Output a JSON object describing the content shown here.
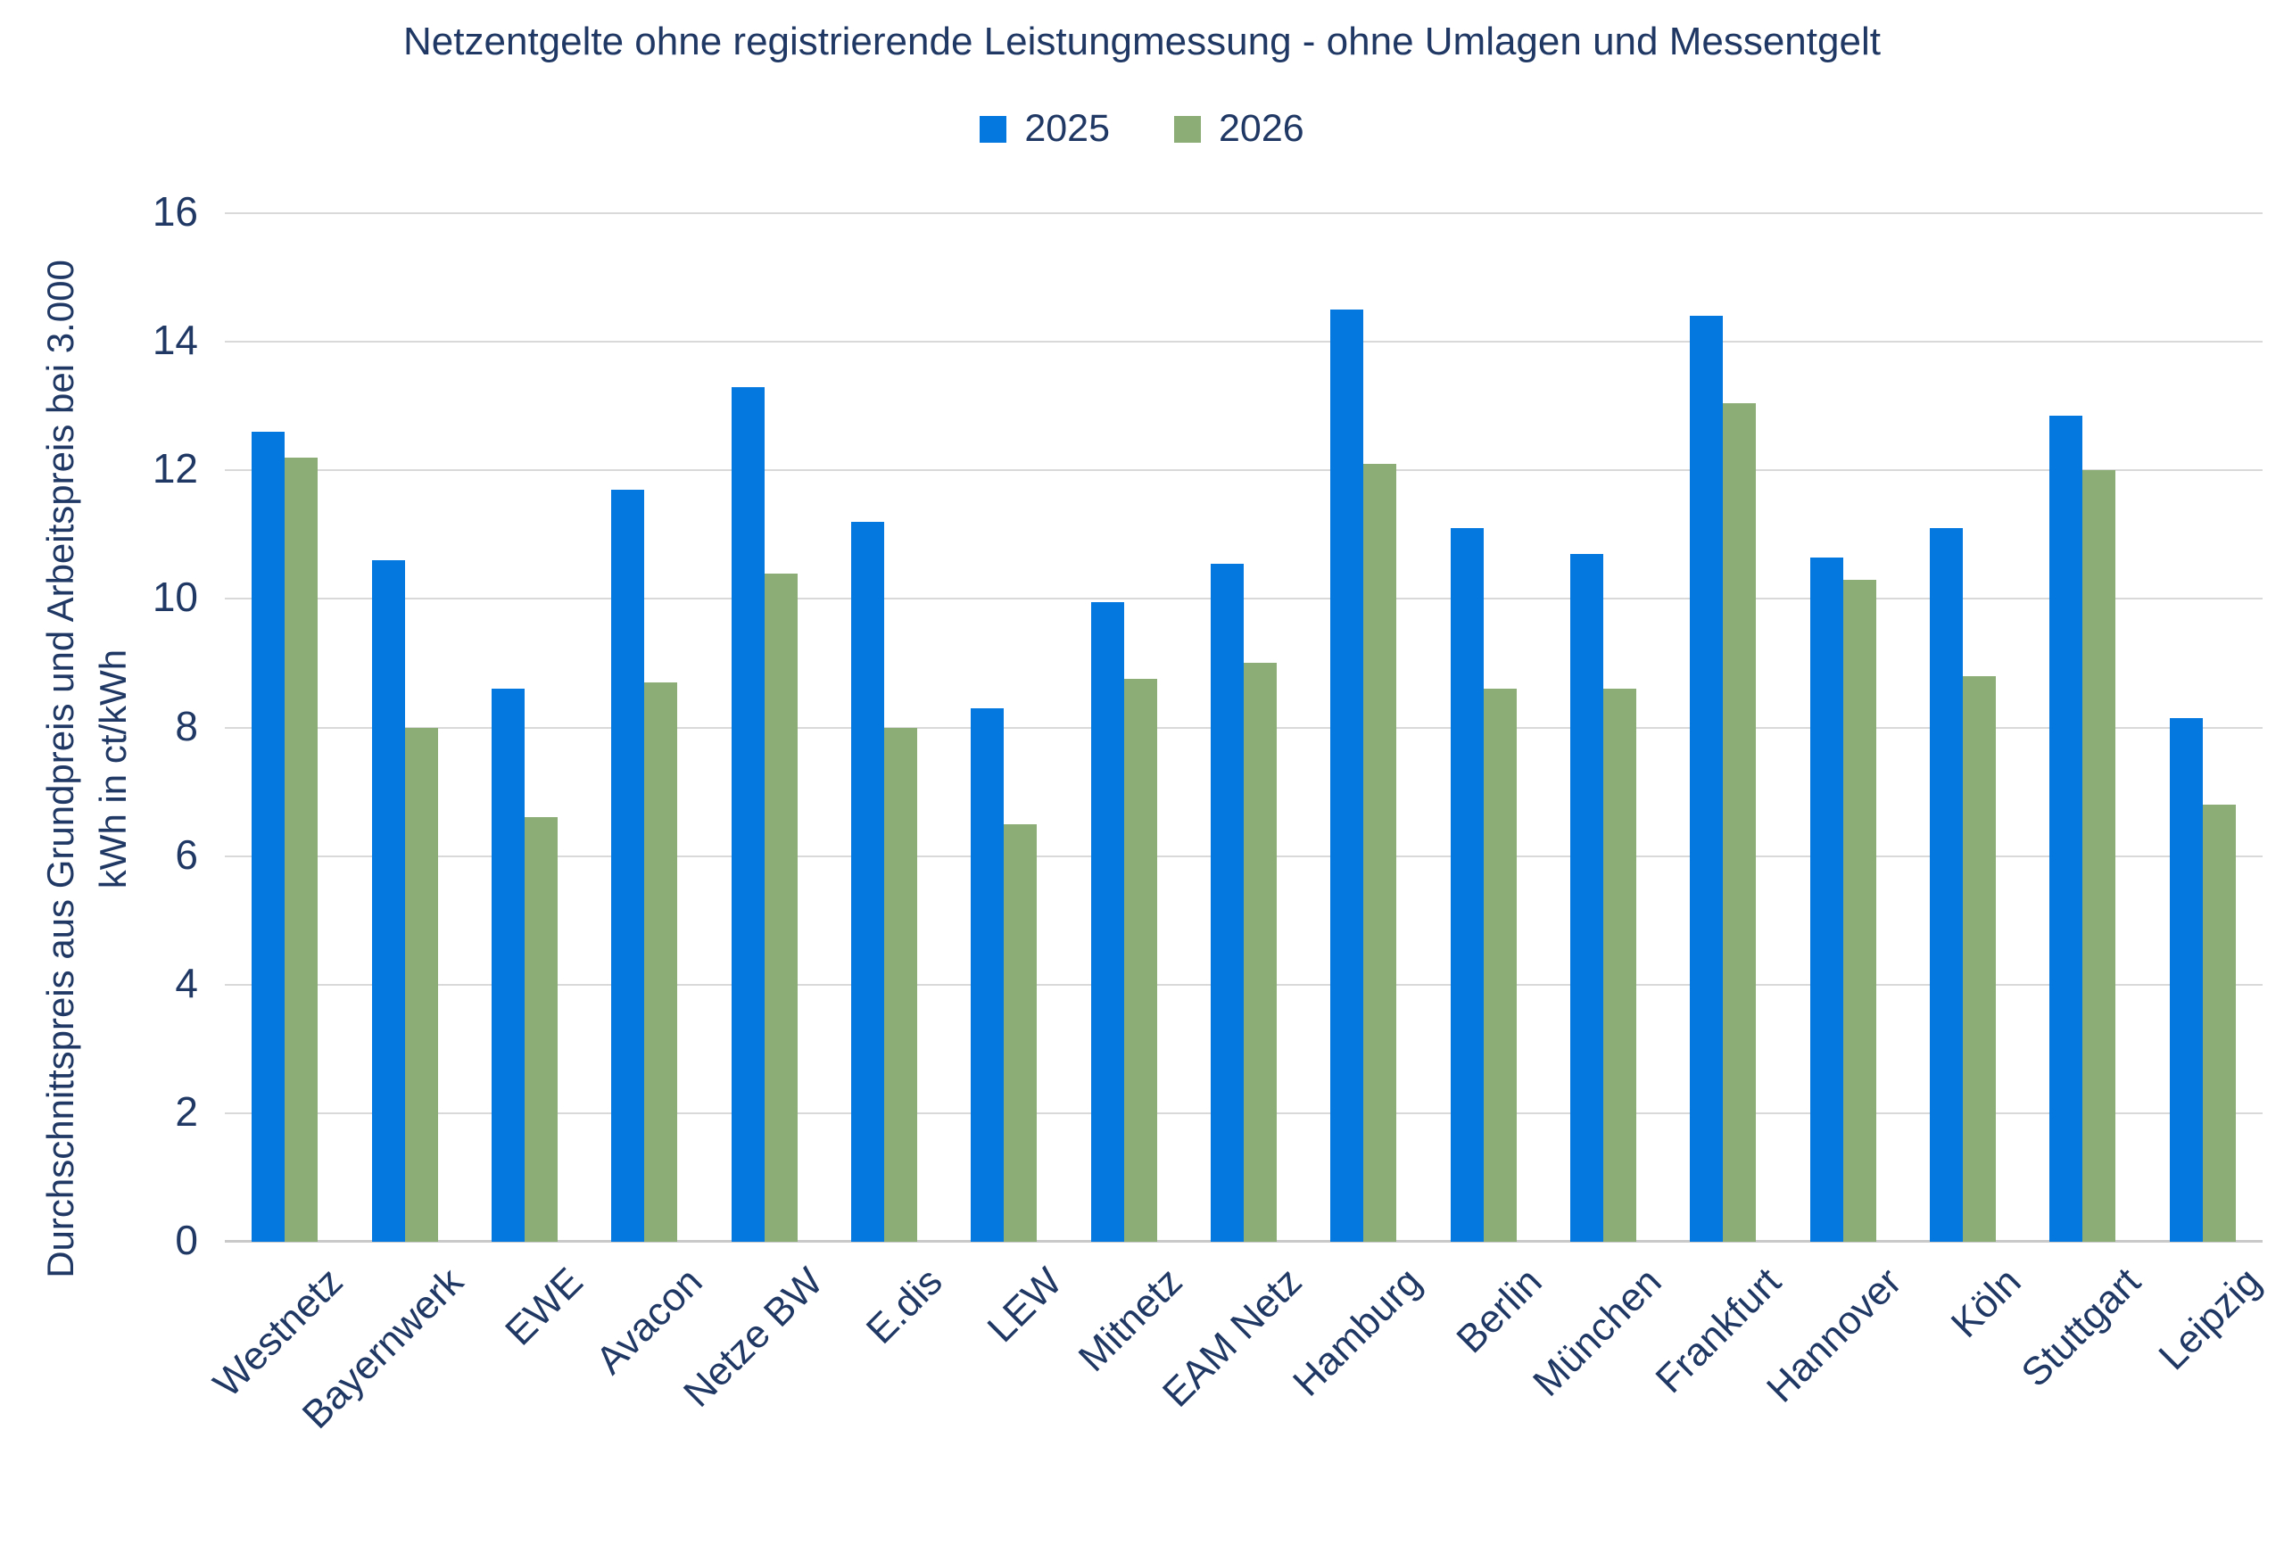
{
  "chart_data": {
    "type": "bar",
    "title": "Netzentgelte ohne registrierende Leistungmessung - ohne Umlagen und Messentgelt",
    "ylabel_line1": "Durchschnittspreis aus Grundpreis und Arbeitspreis bei 3.000",
    "ylabel_line2": "kWh in ct/kWh",
    "xlabel": "",
    "categories": [
      "Westnetz",
      "Bayernwerk",
      "EWE",
      "Avacon",
      "Netze BW",
      "E.dis",
      "LEW",
      "Mitnetz",
      "EAM Netz",
      "Hamburg",
      "Berlin",
      "München",
      "Frankfurt",
      "Hannover",
      "Köln",
      "Stuttgart",
      "Leipzig"
    ],
    "series": [
      {
        "name": "2025",
        "color": "#0478DE",
        "values": [
          12.6,
          10.6,
          8.6,
          11.7,
          13.3,
          11.2,
          8.3,
          9.95,
          10.55,
          14.5,
          11.1,
          10.7,
          14.4,
          10.65,
          11.1,
          12.85,
          8.15
        ]
      },
      {
        "name": "2026",
        "color": "#8CAD76",
        "values": [
          12.2,
          8.0,
          6.6,
          8.7,
          10.4,
          8.0,
          6.5,
          8.75,
          9.0,
          12.1,
          8.6,
          8.6,
          13.05,
          10.3,
          8.8,
          12.0,
          6.8
        ]
      }
    ],
    "ylim": [
      0,
      16
    ],
    "yticks": [
      0,
      2,
      4,
      6,
      8,
      10,
      12,
      14,
      16
    ],
    "grid": true,
    "legend_position": "top-center"
  },
  "colors": {
    "text": "#1F3864",
    "gridline": "#D9D9D9",
    "axis_line": "#C9C9C9",
    "background": "#FFFFFF"
  }
}
